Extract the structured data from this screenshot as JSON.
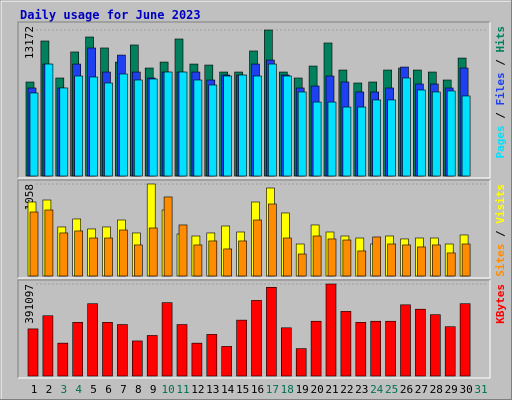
{
  "title": "Daily usage for June 2023",
  "categories": [
    "1",
    "2",
    "3",
    "4",
    "5",
    "6",
    "7",
    "8",
    "9",
    "10",
    "11",
    "12",
    "13",
    "14",
    "15",
    "16",
    "17",
    "18",
    "19",
    "20",
    "21",
    "22",
    "23",
    "24",
    "25",
    "26",
    "27",
    "28",
    "29",
    "30",
    "31"
  ],
  "category_colors": [
    "#000000",
    "#000000",
    "#007050",
    "#007050",
    "#000000",
    "#000000",
    "#000000",
    "#000000",
    "#000000",
    "#007050",
    "#007050",
    "#000000",
    "#000000",
    "#000000",
    "#000000",
    "#000000",
    "#007050",
    "#007050",
    "#000000",
    "#000000",
    "#000000",
    "#000000",
    "#000000",
    "#007050",
    "#007050",
    "#000000",
    "#000000",
    "#000000",
    "#000000",
    "#000000",
    "#007050"
  ],
  "chart_data": [
    {
      "type": "bar",
      "ylim": [
        0,
        13172
      ],
      "yticks": [
        13172
      ],
      "separator": "/",
      "series": [
        {
          "name": "Hits",
          "color": "#00805c",
          "values": [
            8480,
            12180,
            8840,
            11190,
            12540,
            11550,
            10280,
            11820,
            9740,
            10280,
            12360,
            10100,
            10010,
            9380,
            9380,
            11280,
            13172,
            9380,
            8840,
            9920,
            12000,
            9560,
            8390,
            8480,
            9560,
            9740,
            9560,
            9380,
            8660,
            10640,
            null
          ]
        },
        {
          "name": "Files",
          "color": "#1e40f0",
          "values": [
            7940,
            10100,
            7940,
            10100,
            11550,
            9380,
            10910,
            9380,
            8840,
            9380,
            9380,
            9380,
            8660,
            9110,
            9110,
            10100,
            10460,
            9110,
            7940,
            8120,
            9020,
            8480,
            7580,
            7580,
            7940,
            9830,
            8300,
            8300,
            7940,
            9740,
            null
          ]
        },
        {
          "name": "Pages",
          "color": "#00e0ff",
          "values": [
            7490,
            10100,
            7940,
            9020,
            8930,
            8390,
            9200,
            8660,
            8750,
            9380,
            9380,
            8660,
            8210,
            9020,
            9110,
            9020,
            10100,
            9020,
            7580,
            6670,
            6670,
            6220,
            6220,
            6860,
            6860,
            8840,
            7760,
            7580,
            7670,
            7220,
            null
          ]
        }
      ]
    },
    {
      "type": "bar",
      "ylim": [
        0,
        1058
      ],
      "yticks": [
        1058
      ],
      "separator": "/",
      "series": [
        {
          "name": "Visits",
          "color": "#ffff00",
          "values": [
            851,
            874,
            564,
            656,
            541,
            564,
            644,
            495,
            1058,
            759,
            483,
            460,
            495,
            575,
            506,
            851,
            1012,
            725,
            368,
            587,
            506,
            460,
            437,
            368,
            460,
            426,
            437,
            437,
            368,
            472,
            null
          ]
        },
        {
          "name": "Sites",
          "color": "#ff8c00",
          "values": [
            736,
            759,
            495,
            518,
            437,
            437,
            529,
            357,
            552,
            909,
            587,
            357,
            403,
            311,
            403,
            644,
            828,
            437,
            253,
            460,
            426,
            414,
            288,
            449,
            368,
            357,
            334,
            357,
            265,
            368,
            null
          ]
        }
      ]
    },
    {
      "type": "bar",
      "ylim": [
        0,
        391097
      ],
      "yticks": [
        391097
      ],
      "separator": "/",
      "series": [
        {
          "name": "KBytes",
          "color": "#ff0000",
          "values": [
            200200,
            256100,
            139700,
            228100,
            307300,
            228100,
            218800,
            149000,
            172300,
            311900,
            218800,
            139700,
            176900,
            125700,
            237500,
            321300,
            377100,
            204900,
            116400,
            232800,
            391097,
            274700,
            228100,
            232800,
            232800,
            302600,
            284000,
            260700,
            209500,
            307300,
            null
          ]
        }
      ]
    }
  ]
}
